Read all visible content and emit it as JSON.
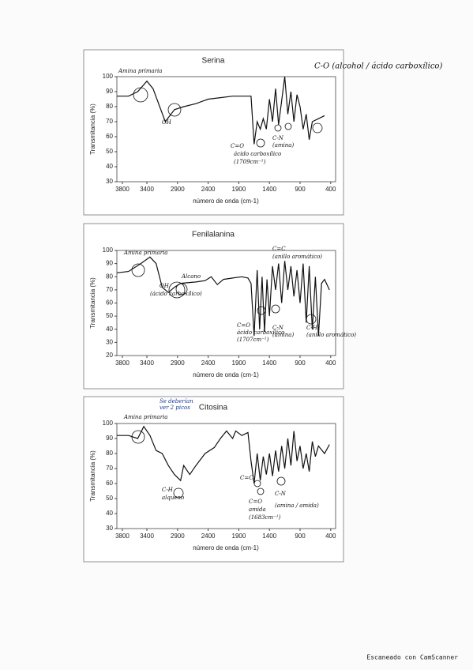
{
  "chart_data": [
    {
      "type": "line",
      "title": "Serina",
      "x_label": "número de onda (cm-1)",
      "y_label": "Transmitancia (%)",
      "color": "#111111",
      "x": [
        3890,
        3700,
        3550,
        3400,
        3300,
        3100,
        2950,
        2800,
        2600,
        2400,
        2200,
        2000,
        1800,
        1700,
        1650,
        1600,
        1550,
        1500,
        1450,
        1400,
        1350,
        1300,
        1250,
        1150,
        1100,
        1050,
        1000,
        950,
        900,
        850,
        800,
        750,
        700,
        600,
        500
      ],
      "values": [
        87,
        87,
        90,
        97,
        92,
        70,
        78,
        80,
        82,
        85,
        86,
        87,
        87,
        87,
        55,
        70,
        65,
        72,
        65,
        85,
        70,
        92,
        68,
        100,
        75,
        90,
        70,
        88,
        80,
        65,
        75,
        58,
        70,
        72,
        74
      ],
      "xlim": [
        3890,
        320
      ],
      "ylim": [
        30,
        100
      ],
      "xticks": [
        3800,
        3400,
        2900,
        2400,
        1900,
        1400,
        900,
        400
      ],
      "yticks": [
        30,
        40,
        50,
        60,
        70,
        80,
        90,
        100
      ],
      "annotations": [
        "Amina primaria",
        "OH",
        "C=O",
        "ácido carboxílico",
        "(1709cm⁻¹)",
        "C-N",
        "(amina)",
        "C-O (alcohol / ácido carboxílico)"
      ]
    },
    {
      "type": "line",
      "title": "Fenilalanina",
      "x_label": "número de onda (cm-1)",
      "y_label": "Transmitancia (%)",
      "color": "#111111",
      "x": [
        3890,
        3700,
        3500,
        3350,
        3250,
        3150,
        3050,
        2950,
        2850,
        2600,
        2450,
        2350,
        2250,
        2150,
        2000,
        1850,
        1750,
        1700,
        1650,
        1600,
        1560,
        1520,
        1480,
        1440,
        1400,
        1350,
        1300,
        1250,
        1200,
        1150,
        1100,
        1050,
        1000,
        950,
        900,
        850,
        800,
        750,
        700,
        650,
        600,
        550,
        500,
        420
      ],
      "values": [
        83,
        84,
        90,
        95,
        90,
        72,
        68,
        72,
        75,
        76,
        77,
        80,
        74,
        78,
        79,
        80,
        79,
        75,
        35,
        85,
        40,
        80,
        38,
        78,
        50,
        88,
        70,
        90,
        60,
        92,
        70,
        88,
        65,
        85,
        60,
        90,
        45,
        88,
        40,
        80,
        35,
        75,
        78,
        70
      ],
      "xlim": [
        3890,
        320
      ],
      "ylim": [
        20,
        100
      ],
      "xticks": [
        3800,
        3400,
        2900,
        2400,
        1900,
        1400,
        900,
        400
      ],
      "yticks": [
        20,
        30,
        40,
        50,
        60,
        70,
        80,
        90,
        100
      ],
      "annotations": [
        "Amina primaria",
        "OH",
        "(ácido carboxílico)",
        "Alcano",
        "C=C",
        "(anillo aromático)",
        "C=O",
        "ácido carboxílico",
        "(1707cm⁻¹)",
        "C-N",
        "(amina)",
        "C-H",
        "(anillo aromático)"
      ]
    },
    {
      "type": "line",
      "title": "Citosina",
      "x_label": "número de onda (cm-1)",
      "y_label": "Transmitancia (%)",
      "color": "#111111",
      "x": [
        3890,
        3700,
        3550,
        3450,
        3350,
        3250,
        3150,
        3050,
        2950,
        2850,
        2800,
        2700,
        2600,
        2450,
        2300,
        2200,
        2100,
        2000,
        1950,
        1850,
        1750,
        1700,
        1650,
        1600,
        1550,
        1500,
        1450,
        1400,
        1350,
        1300,
        1250,
        1200,
        1150,
        1100,
        1050,
        1000,
        950,
        900,
        850,
        800,
        750,
        700,
        650,
        600,
        500,
        420
      ],
      "values": [
        92,
        92,
        90,
        98,
        92,
        82,
        80,
        72,
        66,
        62,
        72,
        66,
        72,
        80,
        84,
        90,
        95,
        90,
        95,
        92,
        94,
        75,
        60,
        80,
        62,
        78,
        66,
        80,
        65,
        82,
        68,
        85,
        70,
        90,
        72,
        95,
        75,
        85,
        70,
        80,
        68,
        88,
        78,
        85,
        80,
        86
      ],
      "xlim": [
        3890,
        320
      ],
      "ylim": [
        30,
        100
      ],
      "xticks": [
        3800,
        3400,
        2900,
        2400,
        1900,
        1400,
        900,
        400
      ],
      "yticks": [
        30,
        40,
        50,
        60,
        70,
        80,
        90,
        100
      ],
      "annotations": [
        "Se deberían",
        "ver 2 picos",
        "Amina primaria",
        "C-H",
        "alqueno",
        "C=C",
        "C=O",
        "amida",
        "(1683cm⁻¹)",
        "C-N",
        "(amina / amida)"
      ]
    }
  ],
  "footer": "Escaneado con CamScanner"
}
